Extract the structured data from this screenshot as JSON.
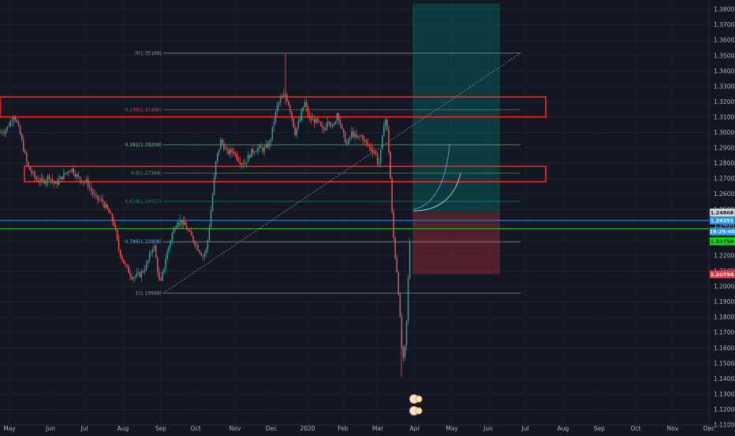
{
  "chart_data": {
    "type": "candlestick",
    "y_ticks": [
      "1.38000",
      "1.37000",
      "1.36000",
      "1.35000",
      "1.34000",
      "1.33000",
      "1.32000",
      "1.31000",
      "1.30000",
      "1.29000",
      "1.28000",
      "1.27000",
      "1.26000",
      "1.25000",
      "1.24000",
      "1.23000",
      "1.22000",
      "1.21000",
      "1.20000",
      "1.19000",
      "1.18000",
      "1.17000",
      "1.16000",
      "1.15000",
      "1.14000",
      "1.13000",
      "1.12000",
      "1.11000"
    ],
    "y_tick_values": [
      1.38,
      1.37,
      1.36,
      1.35,
      1.34,
      1.33,
      1.32,
      1.31,
      1.3,
      1.29,
      1.28,
      1.27,
      1.26,
      1.25,
      1.24,
      1.23,
      1.22,
      1.21,
      1.2,
      1.19,
      1.18,
      1.17,
      1.16,
      1.15,
      1.14,
      1.13,
      1.12,
      1.11
    ],
    "x_ticks": [
      "May",
      "Jun",
      "Jul",
      "Aug",
      "Sep",
      "Oct",
      "Nov",
      "Dec",
      "2020",
      "Feb",
      "Mar",
      "Apr",
      "May",
      "Jun",
      "Jul",
      "Aug",
      "Sep",
      "Oct",
      "Nov",
      "Dec"
    ],
    "ylim": [
      1.1049,
      1.3862
    ],
    "fib_levels": [
      {
        "ratio": 0,
        "price": 1.35168,
        "label": "0(1.35168)",
        "color": "#9598a1"
      },
      {
        "ratio": 0.236,
        "price": 1.31486,
        "label": "0.236(1.31486)",
        "color": "#f23645"
      },
      {
        "ratio": 0.382,
        "price": 1.29209,
        "label": "0.382(1.29209)",
        "color": "#81c784"
      },
      {
        "ratio": 0.5,
        "price": 1.27368,
        "label": "0.5(1.27368)",
        "color": "#4caf50"
      },
      {
        "ratio": 0.618,
        "price": 1.25527,
        "label": "0.618(1.25527)",
        "color": "#089981"
      },
      {
        "ratio": 0.786,
        "price": 1.22906,
        "label": "0.786(1.22906)",
        "color": "#64b5f6"
      },
      {
        "ratio": 1,
        "price": 1.19568,
        "label": "1(1.19568)",
        "color": "#9598a1"
      }
    ],
    "zones": [
      {
        "top": 1.3232,
        "bottom": 1.3102
      },
      {
        "top": 1.2781,
        "bottom": 1.2681
      }
    ],
    "position": {
      "entry": 1.24808,
      "target": 1.384,
      "stop": 1.20794
    },
    "price_labels": [
      {
        "text": "1.24808",
        "price": 1.24808,
        "bg": "#d1d4dc",
        "fg": "#131722"
      },
      {
        "text": "1.24291",
        "price": 1.24291,
        "bg": "#2196f3",
        "fg": "#ffffff"
      },
      {
        "text": "19:29:40",
        "price": 1.23575,
        "bg": "#2196f3",
        "fg": "#ffffff"
      },
      {
        "text": "1.23758",
        "price": 1.22935,
        "bg": "#00e600",
        "fg": "#131722"
      },
      {
        "text": "1.20794",
        "price": 1.20794,
        "bg": "#f23645",
        "fg": "#ffffff"
      }
    ],
    "hlines": [
      {
        "price": 1.24291,
        "color": "#2196f3"
      },
      {
        "price": 1.23758,
        "color": "#26c940"
      }
    ],
    "candle_path": [
      [
        0,
        1.3
      ],
      [
        8,
        1.302
      ],
      [
        18,
        1.312
      ],
      [
        25,
        1.3
      ],
      [
        35,
        1.278
      ],
      [
        45,
        1.27
      ],
      [
        55,
        1.268
      ],
      [
        62,
        1.272
      ],
      [
        70,
        1.266
      ],
      [
        80,
        1.272
      ],
      [
        90,
        1.277
      ],
      [
        100,
        1.27
      ],
      [
        110,
        1.268
      ],
      [
        120,
        1.258
      ],
      [
        130,
        1.255
      ],
      [
        138,
        1.248
      ],
      [
        145,
        1.24
      ],
      [
        150,
        1.225
      ],
      [
        158,
        1.214
      ],
      [
        168,
        1.206
      ],
      [
        178,
        1.208
      ],
      [
        186,
        1.214
      ],
      [
        195,
        1.228
      ],
      [
        203,
        1.2
      ],
      [
        210,
        1.218
      ],
      [
        218,
        1.234
      ],
      [
        226,
        1.244
      ],
      [
        234,
        1.24
      ],
      [
        242,
        1.233
      ],
      [
        250,
        1.226
      ],
      [
        257,
        1.22
      ],
      [
        262,
        1.224
      ],
      [
        266,
        1.242
      ],
      [
        270,
        1.262
      ],
      [
        274,
        1.282
      ],
      [
        280,
        1.295
      ],
      [
        288,
        1.287
      ],
      [
        296,
        1.288
      ],
      [
        303,
        1.282
      ],
      [
        310,
        1.28
      ],
      [
        318,
        1.287
      ],
      [
        326,
        1.29
      ],
      [
        334,
        1.289
      ],
      [
        342,
        1.293
      ],
      [
        348,
        1.309
      ],
      [
        352,
        1.318
      ],
      [
        358,
        1.323
      ],
      [
        362,
        1.325
      ],
      [
        368,
        1.315
      ],
      [
        374,
        1.3
      ],
      [
        380,
        1.308
      ],
      [
        386,
        1.32
      ],
      [
        392,
        1.309
      ],
      [
        398,
        1.308
      ],
      [
        404,
        1.306
      ],
      [
        410,
        1.3
      ],
      [
        416,
        1.31
      ],
      [
        422,
        1.302
      ],
      [
        428,
        1.314
      ],
      [
        434,
        1.3
      ],
      [
        440,
        1.292
      ],
      [
        446,
        1.3
      ],
      [
        452,
        1.296
      ],
      [
        458,
        1.298
      ],
      [
        464,
        1.293
      ],
      [
        470,
        1.29
      ],
      [
        476,
        1.287
      ],
      [
        480,
        1.278
      ],
      [
        484,
        1.292
      ],
      [
        488,
        1.312
      ],
      [
        491,
        1.301
      ],
      [
        494,
        1.282
      ],
      [
        497,
        1.248
      ],
      [
        500,
        1.225
      ],
      [
        503,
        1.212
      ],
      [
        506,
        1.192
      ],
      [
        509,
        1.162
      ],
      [
        512,
        1.15
      ],
      [
        515,
        1.17
      ],
      [
        518,
        1.21
      ],
      [
        521,
        1.246
      ]
    ],
    "seed": 7
  }
}
